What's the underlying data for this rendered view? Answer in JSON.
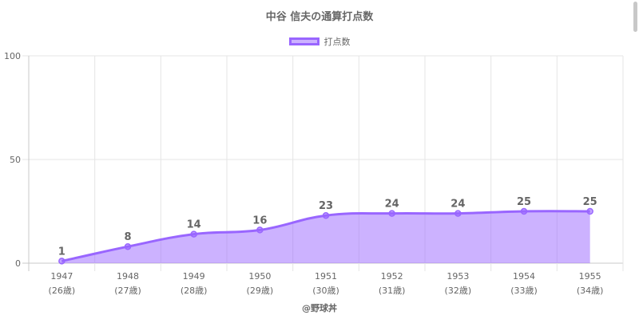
{
  "chart_data": {
    "type": "area",
    "title": "中谷 信夫の通算打点数",
    "categories": [
      "1947",
      "1948",
      "1949",
      "1950",
      "1951",
      "1952",
      "1953",
      "1954",
      "1955"
    ],
    "category_sublabels": [
      "(26歳)",
      "(27歳)",
      "(28歳)",
      "(29歳)",
      "(30歳)",
      "(31歳)",
      "(32歳)",
      "(33歳)",
      "(34歳)"
    ],
    "series": [
      {
        "name": "打点数",
        "values": [
          1,
          8,
          14,
          16,
          23,
          24,
          24,
          25,
          25
        ]
      }
    ],
    "ylim": [
      0,
      100
    ],
    "yticks": [
      0,
      50,
      100
    ],
    "grid": true,
    "legend": "top-center",
    "data_labels": true,
    "colors": {
      "line": "#9966ff",
      "fill": "rgba(153,102,255,0.5)",
      "grid": "#e5e5e5",
      "axis": "#c8c8c8"
    }
  },
  "footer": {
    "credit": "@野球丼"
  }
}
